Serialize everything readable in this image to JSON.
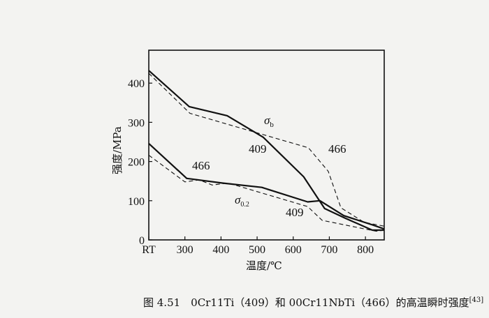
{
  "chart_data": {
    "type": "line",
    "title": "",
    "xlabel": "温度/℃",
    "ylabel": "强度/MPa",
    "xlim": [
      200,
      852
    ],
    "ylim": [
      0,
      484
    ],
    "xticks": [
      200,
      300,
      400,
      500,
      600,
      700,
      800
    ],
    "xtick_labels": [
      "RT",
      "300",
      "400",
      "500",
      "600",
      "700",
      "800"
    ],
    "yticks": [
      0,
      100,
      200,
      300,
      400
    ],
    "ytick_labels": [
      "0",
      "100",
      "200",
      "300",
      "400"
    ],
    "grid": false,
    "series": [
      {
        "name": "409 σb",
        "style": "solid",
        "x": [
          200,
          312,
          417,
          517,
          629,
          687,
          745,
          819,
          852
        ],
        "y": [
          432,
          340,
          317,
          262,
          161,
          80,
          55,
          25,
          25
        ]
      },
      {
        "name": "466 σb",
        "style": "dashed",
        "x": [
          200,
          314,
          642,
          697,
          732,
          796,
          852
        ],
        "y": [
          425,
          323,
          235,
          175,
          82,
          45,
          35
        ]
      },
      {
        "name": "409 σ0.2",
        "style": "solid",
        "x": [
          200,
          305,
          404,
          513,
          640,
          674,
          740,
          820,
          852
        ],
        "y": [
          246,
          157,
          145,
          134,
          97,
          100,
          62,
          38,
          28
        ]
      },
      {
        "name": "466 σ0.2",
        "style": "dashed",
        "x": [
          200,
          300,
          340,
          375,
          420,
          640,
          680,
          760,
          830,
          852
        ],
        "y": [
          216,
          148,
          153,
          140,
          145,
          85,
          50,
          35,
          22,
          25
        ]
      }
    ],
    "annotations": {
      "sigma_b": "σ",
      "sigma_b_sub": "b",
      "sigma_02": "σ",
      "sigma_02_sub": "0.2",
      "label_409_b": "409",
      "label_466_b": "466",
      "label_466_02": "466",
      "label_409_02": "409"
    }
  },
  "caption": {
    "text": "图 4.51　0Cr11Ti（409）和 00Cr11NbTi（466）的高温瞬时强度",
    "ref": "[43]"
  }
}
